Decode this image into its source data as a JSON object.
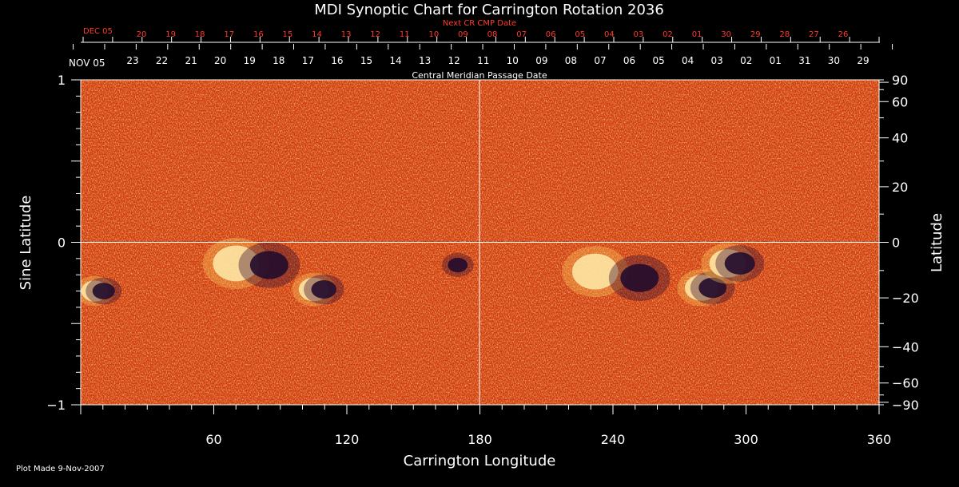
{
  "chart_data": {
    "type": "heatmap",
    "title": "MDI Synoptic Chart for Carrington Rotation 2036",
    "subtitle_next": "Next CR CMP Date",
    "subtitle_cmp": "Central Meridian Passage Date",
    "xlabel": "Carrington Longitude",
    "ylabel_left": "Sine Latitude",
    "ylabel_right": "Latitude",
    "xlim": [
      0,
      360
    ],
    "ylim": [
      -1,
      1
    ],
    "x_ticks": [
      "60",
      "120",
      "180",
      "240",
      "300",
      "360"
    ],
    "left_ticks": [
      "1",
      "0",
      "−1"
    ],
    "right_ticks": [
      "90",
      "60",
      "40",
      "20",
      "0",
      "−20",
      "−40",
      "−60",
      "−90"
    ],
    "right_tick_degrees": [
      90,
      60,
      40,
      20,
      0,
      -20,
      -40,
      -60,
      -90
    ],
    "cmp_dates": {
      "start_label": "NOV 05",
      "labels": [
        "23",
        "22",
        "21",
        "20",
        "19",
        "18",
        "17",
        "16",
        "15",
        "14",
        "13",
        "12",
        "11",
        "10",
        "09",
        "08",
        "07",
        "06",
        "05",
        "04",
        "03",
        "02",
        "01",
        "31",
        "30",
        "29"
      ]
    },
    "next_cmp_dates": {
      "start_label": "DEC 05",
      "labels": [
        "20",
        "19",
        "18",
        "17",
        "16",
        "15",
        "14",
        "13",
        "12",
        "11",
        "10",
        "09",
        "08",
        "07",
        "06",
        "05",
        "04",
        "03",
        "02",
        "01",
        "30",
        "29",
        "28",
        "27",
        "26"
      ]
    },
    "grid": false,
    "crosshair": {
      "longitude": 180,
      "sine_latitude": 0
    },
    "active_regions": [
      {
        "lon": 70,
        "sinlat": -0.13,
        "polarity": "positive",
        "strength": 1.0
      },
      {
        "lon": 85,
        "sinlat": -0.14,
        "polarity": "negative",
        "strength": 1.0
      },
      {
        "lon": 107,
        "sinlat": -0.29,
        "polarity": "mixed",
        "strength": 0.5
      },
      {
        "lon": 232,
        "sinlat": -0.18,
        "polarity": "positive",
        "strength": 1.0
      },
      {
        "lon": 252,
        "sinlat": -0.22,
        "polarity": "negative",
        "strength": 1.0
      },
      {
        "lon": 282,
        "sinlat": -0.28,
        "polarity": "mixed",
        "strength": 0.6
      },
      {
        "lon": 294,
        "sinlat": -0.13,
        "polarity": "mixed",
        "strength": 0.7
      },
      {
        "lon": 8,
        "sinlat": -0.3,
        "polarity": "mixed",
        "strength": 0.4
      },
      {
        "lon": 170,
        "sinlat": -0.14,
        "polarity": "negative",
        "strength": 0.3
      }
    ],
    "colors": {
      "background": "#000000",
      "field": "#d93a08",
      "text": "#ffffff",
      "accent": "#ff3a2a"
    }
  },
  "footer": {
    "plot_made": "Plot Made  9-Nov-2007"
  }
}
